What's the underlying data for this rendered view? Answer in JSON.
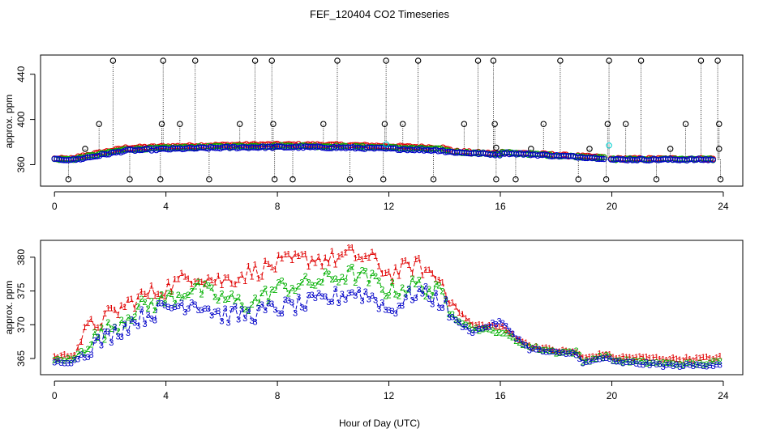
{
  "title": "FEF_120404  CO2 Timeseries",
  "xlabel": "Hour of Day (UTC)",
  "colors": {
    "all_points": "#000000",
    "series1": "#e00000",
    "series2": "#00b000",
    "series3": "#0000c8",
    "cyan": "#00d0d0"
  },
  "chart_data": [
    {
      "type": "scatter",
      "panel": "top",
      "title": "",
      "xlabel": "",
      "ylabel": "approx. ppm",
      "xlim": [
        -0.5,
        24.7
      ],
      "ylim": [
        341,
        457
      ],
      "x_ticks": [
        0,
        4,
        8,
        12,
        16,
        20,
        24
      ],
      "x_tick_labels": [
        "0",
        "4",
        "8",
        "12",
        "16",
        "20",
        "24"
      ],
      "y_ticks": [
        360,
        400,
        440
      ],
      "y_tick_labels": [
        "360",
        "400",
        "440"
      ],
      "high_spikes_x": [
        2.1,
        3.9,
        5.05,
        7.2,
        7.8,
        10.15,
        11.9,
        13.05,
        15.2,
        15.75,
        18.15,
        19.9,
        21.05,
        23.2,
        23.8
      ],
      "high_spike_value": 452,
      "mid_spikes_x": [
        1.6,
        3.85,
        4.5,
        6.65,
        7.85,
        9.65,
        11.85,
        12.5,
        14.7,
        15.8,
        17.55,
        19.85,
        20.5,
        22.65,
        23.85
      ],
      "mid_spike_value": 396,
      "low_spikes_x": [
        0.5,
        2.7,
        3.8,
        5.55,
        7.9,
        8.55,
        10.6,
        11.8,
        13.6,
        15.85,
        16.55,
        18.8,
        19.8,
        21.6,
        23.9
      ],
      "low_spike_value": 347,
      "small_spikes": [
        {
          "x": 1.1,
          "y": 374
        },
        {
          "x": 7.85,
          "y": 375
        },
        {
          "x": 15.85,
          "y": 375
        },
        {
          "x": 17.1,
          "y": 374
        },
        {
          "x": 19.2,
          "y": 374
        },
        {
          "x": 22.1,
          "y": 374
        },
        {
          "x": 23.85,
          "y": 374
        }
      ],
      "cyan_points": [
        {
          "x": 19.9,
          "y": 377
        },
        {
          "x": 11.9,
          "y": 378
        }
      ],
      "legend": "none"
    },
    {
      "type": "line",
      "panel": "bottom",
      "title": "",
      "xlabel": "Hour of Day (UTC)",
      "ylabel": "approx. ppm",
      "xlim": [
        -0.5,
        24.7
      ],
      "ylim": [
        362.6,
        382.5
      ],
      "x_ticks": [
        0,
        4,
        8,
        12,
        16,
        20,
        24
      ],
      "x_tick_labels": [
        "0",
        "4",
        "8",
        "12",
        "16",
        "20",
        "24"
      ],
      "y_ticks": [
        365,
        370,
        375,
        380
      ],
      "y_tick_labels": [
        "365",
        "370",
        "375",
        "380"
      ],
      "x": [
        0.0,
        0.7,
        1.2,
        2.0,
        3.0,
        4.0,
        5.0,
        6.0,
        7.0,
        8.0,
        9.0,
        10.0,
        10.7,
        11.5,
        12.0,
        13.0,
        13.9,
        14.4,
        15.0,
        16.0,
        17.0,
        18.0,
        18.8,
        18.9,
        19.8,
        20.0,
        21.0,
        22.0,
        23.0,
        23.9
      ],
      "series": [
        {
          "name": "1",
          "color": "#e00000",
          "marker": "1",
          "values": [
            365.3,
            365.6,
            369.5,
            371.5,
            374.0,
            375.5,
            377.5,
            376.5,
            377.8,
            379.0,
            379.8,
            379.8,
            380.5,
            379.5,
            377.5,
            379.0,
            376.5,
            372.5,
            370.0,
            369.8,
            367.0,
            366.2,
            366.0,
            365.0,
            365.8,
            365.2,
            365.2,
            365.0,
            365.0,
            365.2
          ]
        },
        {
          "name": "2",
          "color": "#00b000",
          "marker": "2",
          "values": [
            364.8,
            364.9,
            367.5,
            369.5,
            372.5,
            373.8,
            375.5,
            374.0,
            373.0,
            375.5,
            376.0,
            377.0,
            377.5,
            376.5,
            375.0,
            376.0,
            374.5,
            371.0,
            369.5,
            369.0,
            366.8,
            366.0,
            366.0,
            364.5,
            365.5,
            364.8,
            364.5,
            364.3,
            364.2,
            364.5
          ]
        },
        {
          "name": "3",
          "color": "#0000c8",
          "marker": "3",
          "values": [
            364.5,
            364.6,
            366.5,
            368.5,
            371.0,
            372.5,
            373.5,
            371.5,
            371.5,
            372.5,
            373.0,
            374.0,
            375.0,
            374.0,
            372.0,
            375.0,
            373.5,
            370.5,
            369.0,
            370.5,
            366.5,
            365.8,
            365.8,
            364.2,
            365.2,
            364.5,
            364.3,
            364.0,
            364.0,
            364.2
          ]
        }
      ],
      "legend": "none"
    }
  ]
}
